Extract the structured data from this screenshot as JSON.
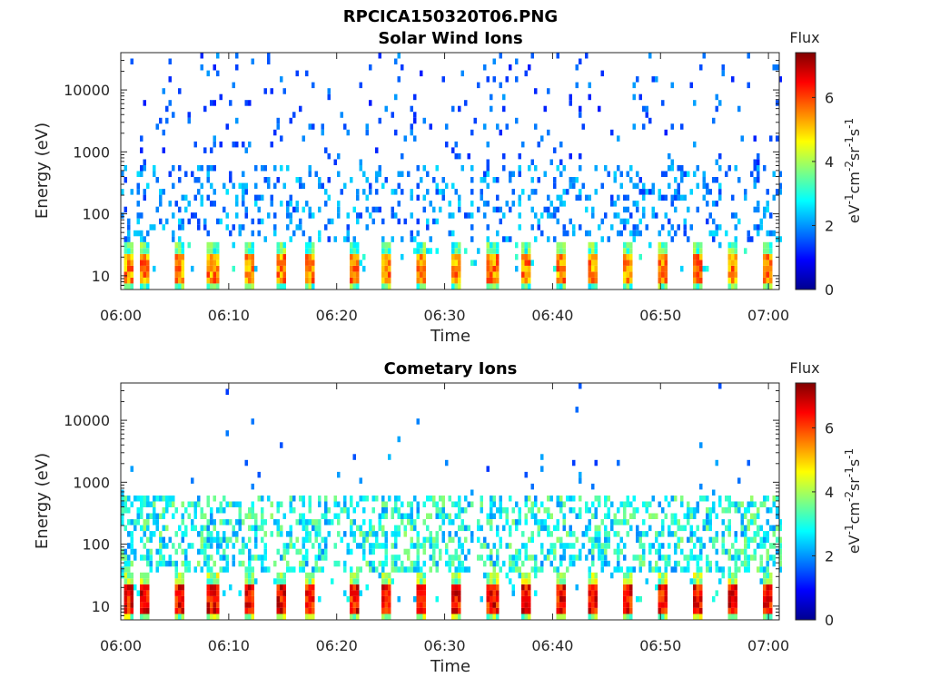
{
  "figure_title": "RPCICA150320T06.PNG",
  "colors": {
    "axis": "#262626",
    "colormap": [
      "#00008f",
      "#0000ff",
      "#0080ff",
      "#00ffff",
      "#80ff80",
      "#ffff00",
      "#ff8000",
      "#ff0000",
      "#800000"
    ]
  },
  "chart_data": [
    {
      "type": "heatmap",
      "title": "Solar Wind Ions",
      "xlabel": "Time",
      "ylabel": "Energy (eV)",
      "xlim": [
        "06:00",
        "07:01"
      ],
      "x_ticks": [
        "06:00",
        "06:10",
        "06:20",
        "06:30",
        "06:40",
        "06:50",
        "07:00"
      ],
      "x_tick_minutes": [
        0,
        10,
        20,
        30,
        40,
        50,
        60
      ],
      "y_scale": "log",
      "ylim": [
        6,
        40000
      ],
      "y_ticks": [
        "10",
        "100",
        "1000",
        "10000"
      ],
      "y_tick_values": [
        10,
        100,
        1000,
        10000
      ],
      "colorbar": {
        "title": "Flux",
        "label_base": "eV",
        "label_exps": [
          "-1",
          "-2",
          "-1",
          "-1"
        ],
        "label_units": [
          "cm",
          "sr",
          "s"
        ],
        "range": [
          0,
          7.4
        ],
        "ticks": [
          "0",
          "2",
          "4",
          "6"
        ],
        "tick_values": [
          0,
          2,
          4,
          6
        ]
      },
      "features": {
        "burst_minutes": [
          0.5,
          2.2,
          5.3,
          8.4,
          11.7,
          14.8,
          17.5,
          21.5,
          24.4,
          27.6,
          31.0,
          34.3,
          37.5,
          40.7,
          43.7,
          46.9,
          50.1,
          53.4,
          56.6,
          59.7
        ],
        "low_band_flux_range": [
          2.5,
          6.2
        ],
        "high_energy_scatter_flux_range": [
          1.3,
          2.6
        ]
      }
    },
    {
      "type": "heatmap",
      "title": "Cometary Ions",
      "xlabel": "Time",
      "ylabel": "Energy (eV)",
      "xlim": [
        "06:00",
        "07:01"
      ],
      "x_ticks": [
        "06:00",
        "06:10",
        "06:20",
        "06:30",
        "06:40",
        "06:50",
        "07:00"
      ],
      "x_tick_minutes": [
        0,
        10,
        20,
        30,
        40,
        50,
        60
      ],
      "y_scale": "log",
      "ylim": [
        6,
        40000
      ],
      "y_ticks": [
        "10",
        "100",
        "1000",
        "10000"
      ],
      "y_tick_values": [
        10,
        100,
        1000,
        10000
      ],
      "colorbar": {
        "title": "Flux",
        "label_base": "eV",
        "label_exps": [
          "-1",
          "-2",
          "-1",
          "-1"
        ],
        "label_units": [
          "cm",
          "sr",
          "s"
        ],
        "range": [
          0,
          7.4
        ],
        "ticks": [
          "0",
          "2",
          "4",
          "6"
        ],
        "tick_values": [
          0,
          2,
          4,
          6
        ]
      },
      "features": {
        "burst_minutes": [
          0.5,
          2.2,
          5.3,
          8.4,
          11.7,
          14.8,
          17.5,
          21.5,
          24.4,
          27.6,
          31.0,
          34.3,
          37.5,
          40.7,
          43.7,
          46.9,
          50.1,
          53.4,
          56.6,
          59.7
        ],
        "low_band_flux_range": [
          3.0,
          7.2
        ],
        "high_energy_scatter_flux_range": [
          1.5,
          3.5
        ]
      }
    }
  ]
}
